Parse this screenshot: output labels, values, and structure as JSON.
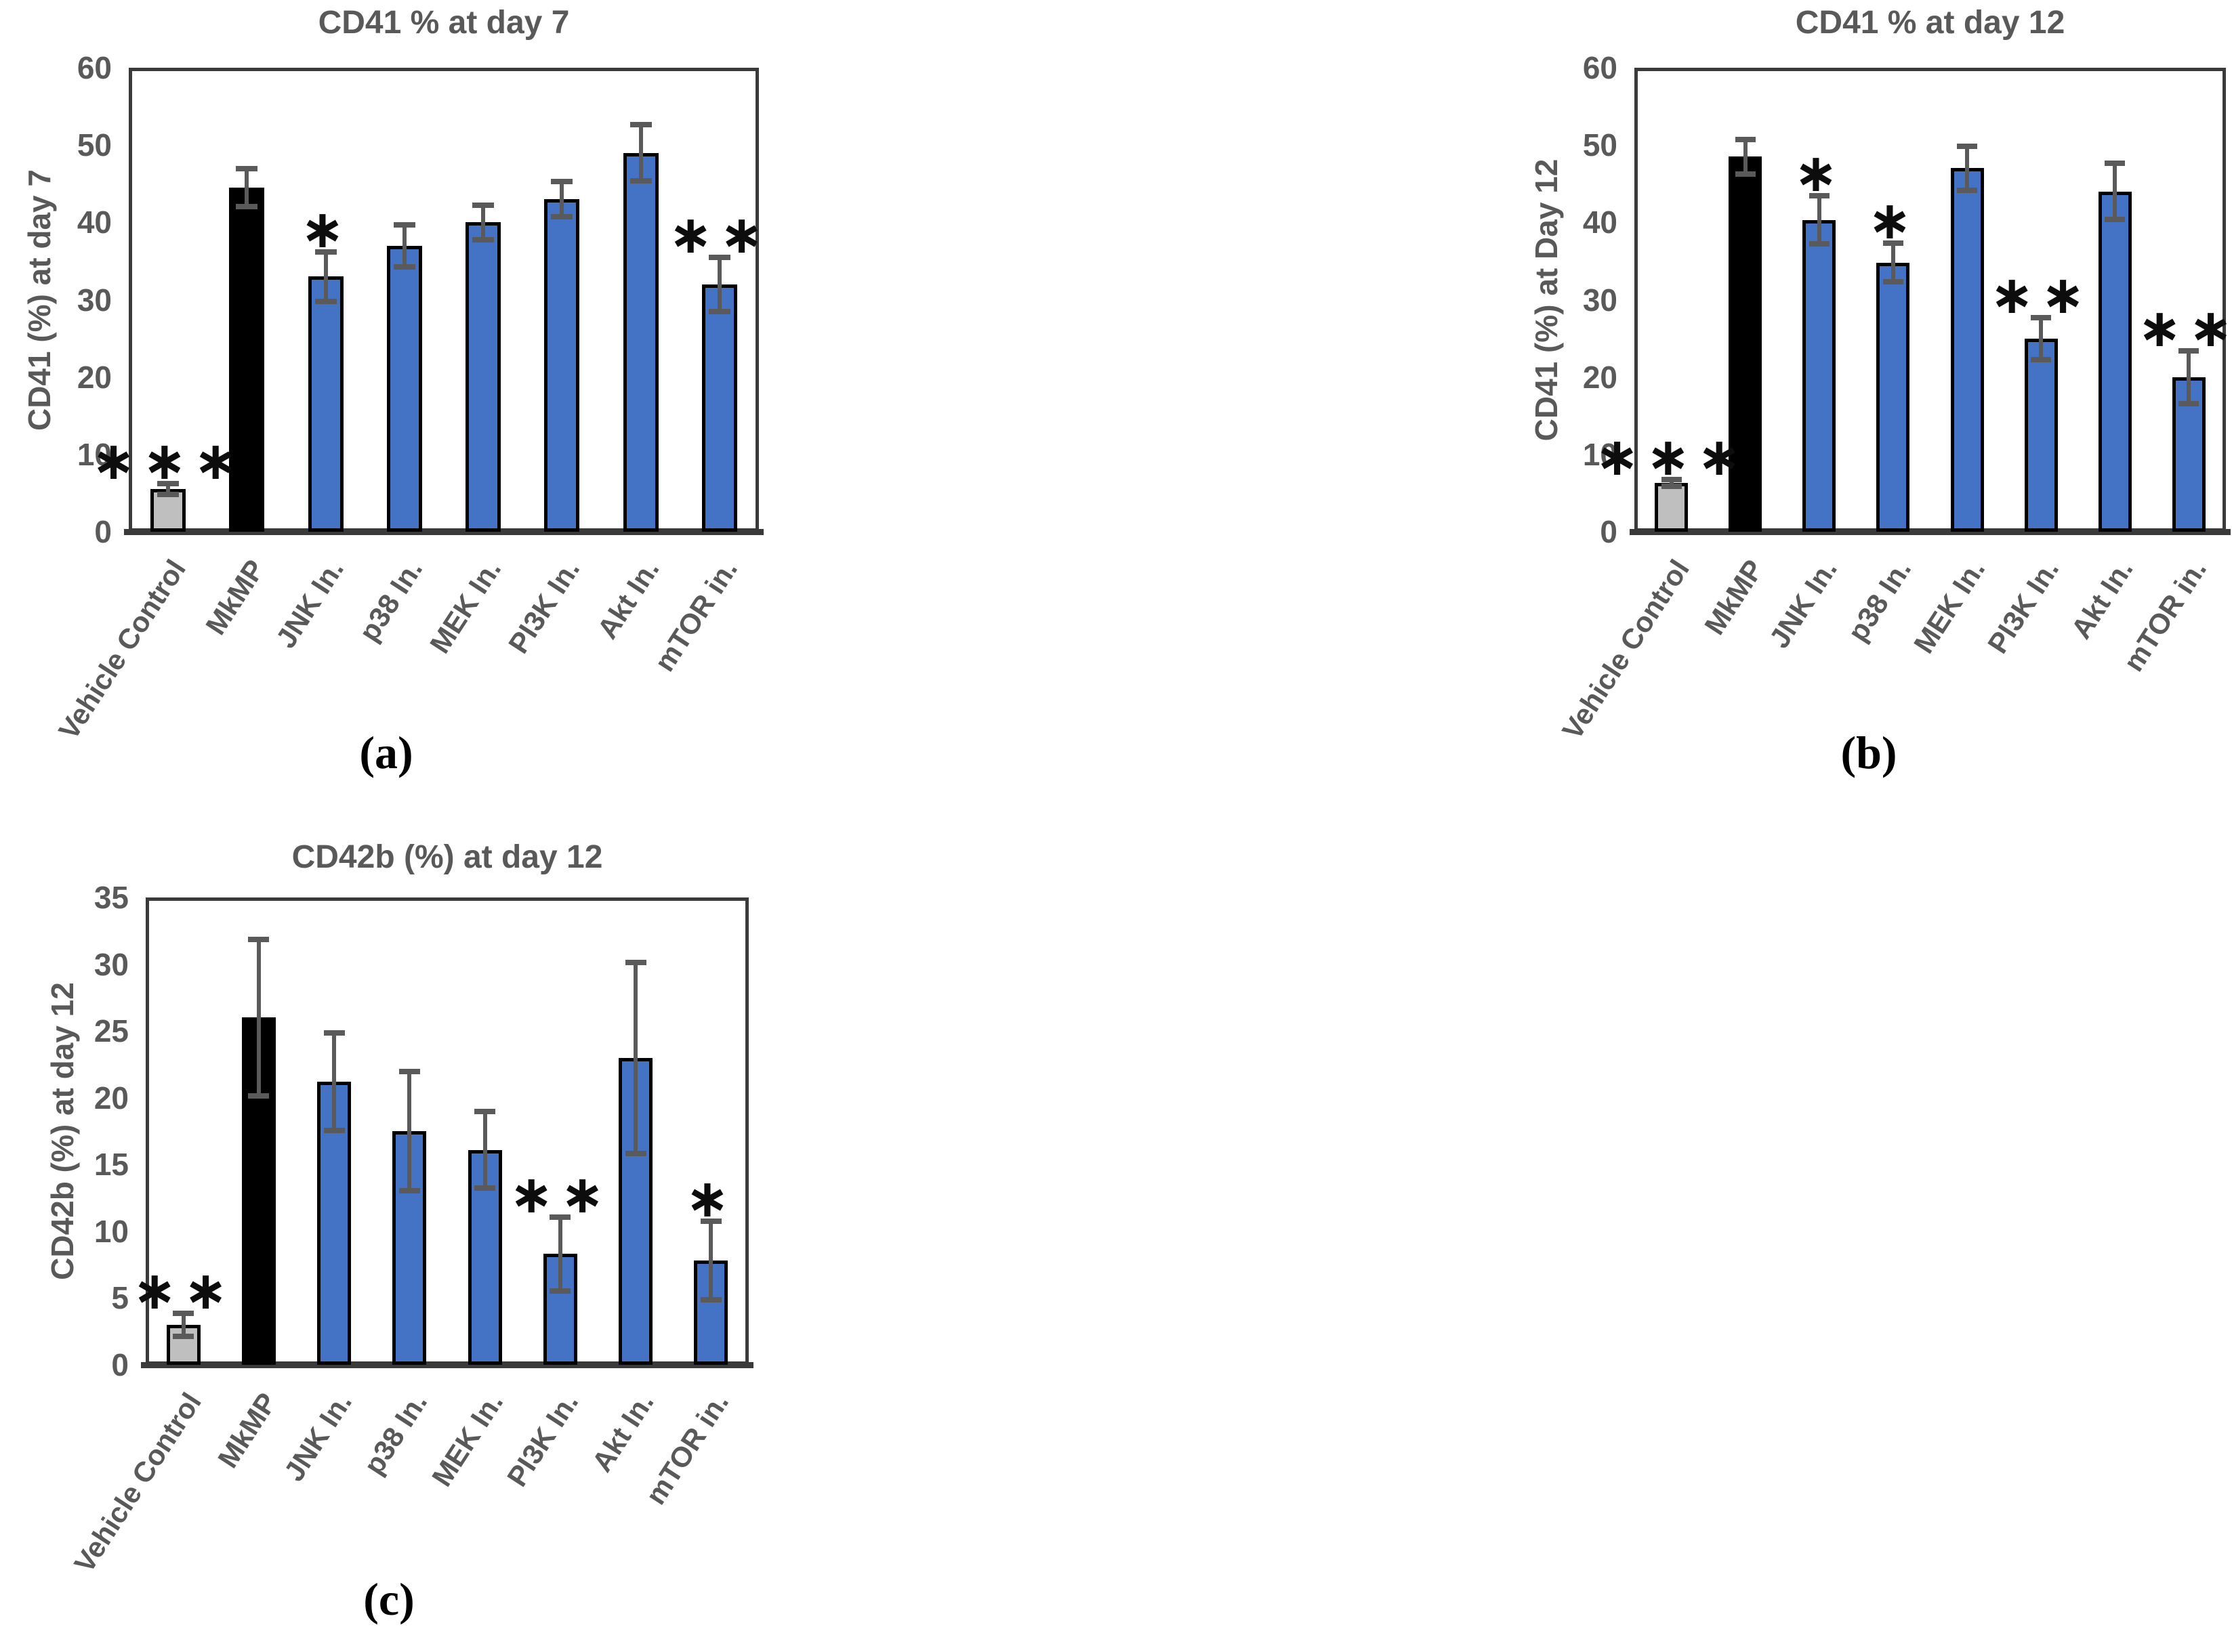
{
  "colors": {
    "blue": "#4472C4",
    "black": "#000000",
    "gray": "#BFBFBF",
    "error_bar": "#5A5A5A",
    "axis": "#3A3A3A",
    "label_text": "#595959",
    "significance": "#0D0D0D"
  },
  "chart_data": [
    {
      "id": "a",
      "type": "bar",
      "title": "CD41 % at day 7",
      "ylabel": "CD41 (%) at day 7",
      "xlabel": "",
      "ylim": [
        0,
        60
      ],
      "yticks": [
        0,
        10,
        20,
        30,
        40,
        50,
        60
      ],
      "grid": false,
      "legend": "none",
      "categories": [
        "Vehicle Control",
        "MkMP",
        "JNK In.",
        "p38 In.",
        "MEK In.",
        "PI3K In.",
        "Akt In.",
        "mTOR in."
      ],
      "values": [
        5.5,
        44.5,
        33,
        37,
        40,
        43,
        49,
        32
      ],
      "errors": [
        0.8,
        2.5,
        3.3,
        2.8,
        2.3,
        2.4,
        3.7,
        3.6
      ],
      "significance": [
        "***",
        "",
        "*",
        "",
        "",
        "",
        "",
        "**"
      ],
      "bar_colors": [
        "gray",
        "black",
        "blue",
        "blue",
        "blue",
        "blue",
        "blue",
        "blue"
      ],
      "caption": "(a)"
    },
    {
      "id": "b",
      "type": "bar",
      "title": "CD41 % at day 12",
      "ylabel": "CD41 (%) at Day 12",
      "xlabel": "",
      "ylim": [
        0,
        60
      ],
      "yticks": [
        0,
        10,
        20,
        30,
        40,
        50,
        60
      ],
      "grid": false,
      "legend": "none",
      "categories": [
        "Vehicle Control",
        "MkMP",
        "JNK In.",
        "p38 In.",
        "MEK In.",
        "PI3K In.",
        "Akt In.",
        "mTOR in."
      ],
      "values": [
        6.3,
        48.5,
        40.3,
        34.8,
        47,
        25,
        44,
        20
      ],
      "errors": [
        0.5,
        2.3,
        3.2,
        2.6,
        2.9,
        2.8,
        3.7,
        3.5
      ],
      "significance": [
        "***",
        "",
        "*",
        "*",
        "",
        "**",
        "",
        "**"
      ],
      "bar_colors": [
        "gray",
        "black",
        "blue",
        "blue",
        "blue",
        "blue",
        "blue",
        "blue"
      ],
      "caption": "(b)"
    },
    {
      "id": "c",
      "type": "bar",
      "title": "CD42b (%) at day 12",
      "ylabel": "CD42b (%) at day 12",
      "xlabel": "",
      "ylim": [
        0,
        35
      ],
      "yticks": [
        0,
        5,
        10,
        15,
        20,
        25,
        30,
        35
      ],
      "grid": false,
      "legend": "none",
      "categories": [
        "Vehicle Control",
        "MkMP",
        "JNK In.",
        "p38 In.",
        "MEK In.",
        "PI3K In.",
        "Akt In.",
        "mTOR in."
      ],
      "values": [
        3,
        26,
        21.2,
        17.5,
        16.1,
        8.3,
        23,
        7.8
      ],
      "errors": [
        0.9,
        5.9,
        3.7,
        4.5,
        2.9,
        2.8,
        7.2,
        3
      ],
      "significance": [
        "**",
        "",
        "",
        "",
        "",
        "**",
        "",
        "*"
      ],
      "bar_colors": [
        "gray",
        "black",
        "blue",
        "blue",
        "blue",
        "blue",
        "blue",
        "blue"
      ],
      "caption": "(c)"
    }
  ]
}
